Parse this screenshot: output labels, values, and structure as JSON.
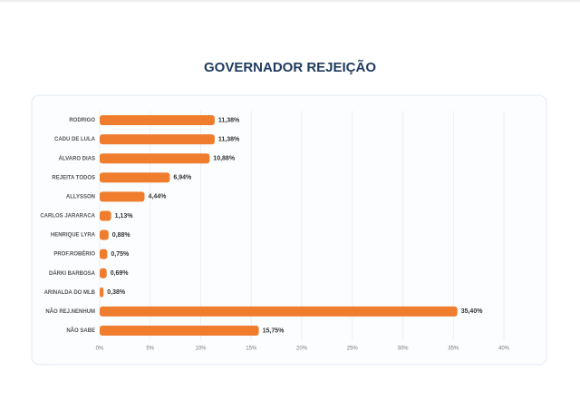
{
  "chart_data": {
    "type": "bar",
    "orientation": "horizontal",
    "title": "GOVERNADOR REJEIÇÃO",
    "categories": [
      "RODRIGO",
      "CADU DE LULA",
      "ÁLVARO DIAS",
      "REJEITA TODOS",
      "ALLYSSON",
      "CARLOS JARARACA",
      "HENRIQUE LYRA",
      "PROF.ROBÉRIO",
      "DÁRKI BARBOSA",
      "ARINALDA DO MLB",
      "NÃO REJ.NENHUM",
      "NÃO SABE"
    ],
    "values": [
      11.38,
      11.38,
      10.88,
      6.94,
      4.44,
      1.13,
      0.88,
      0.75,
      0.69,
      0.38,
      35.4,
      15.75
    ],
    "value_labels": [
      "11,38%",
      "11,38%",
      "10,88%",
      "6,94%",
      "4,44%",
      "1,13%",
      "0,88%",
      "0,75%",
      "0,69%",
      "0,38%",
      "35,40%",
      "15,75%"
    ],
    "color": "#ef7d2d",
    "xlim": [
      0,
      40
    ],
    "xticks": [
      {
        "value": 0,
        "label": "0%"
      },
      {
        "value": 5,
        "label": "5%"
      },
      {
        "value": 10,
        "label": "10%"
      },
      {
        "value": 15,
        "label": "15%"
      },
      {
        "value": 20,
        "label": "20%"
      },
      {
        "value": 25,
        "label": "25%"
      },
      {
        "value": 30,
        "label": "30%"
      },
      {
        "value": 35,
        "label": "35%"
      },
      {
        "value": 40,
        "label": "40%"
      }
    ],
    "grid": true
  }
}
